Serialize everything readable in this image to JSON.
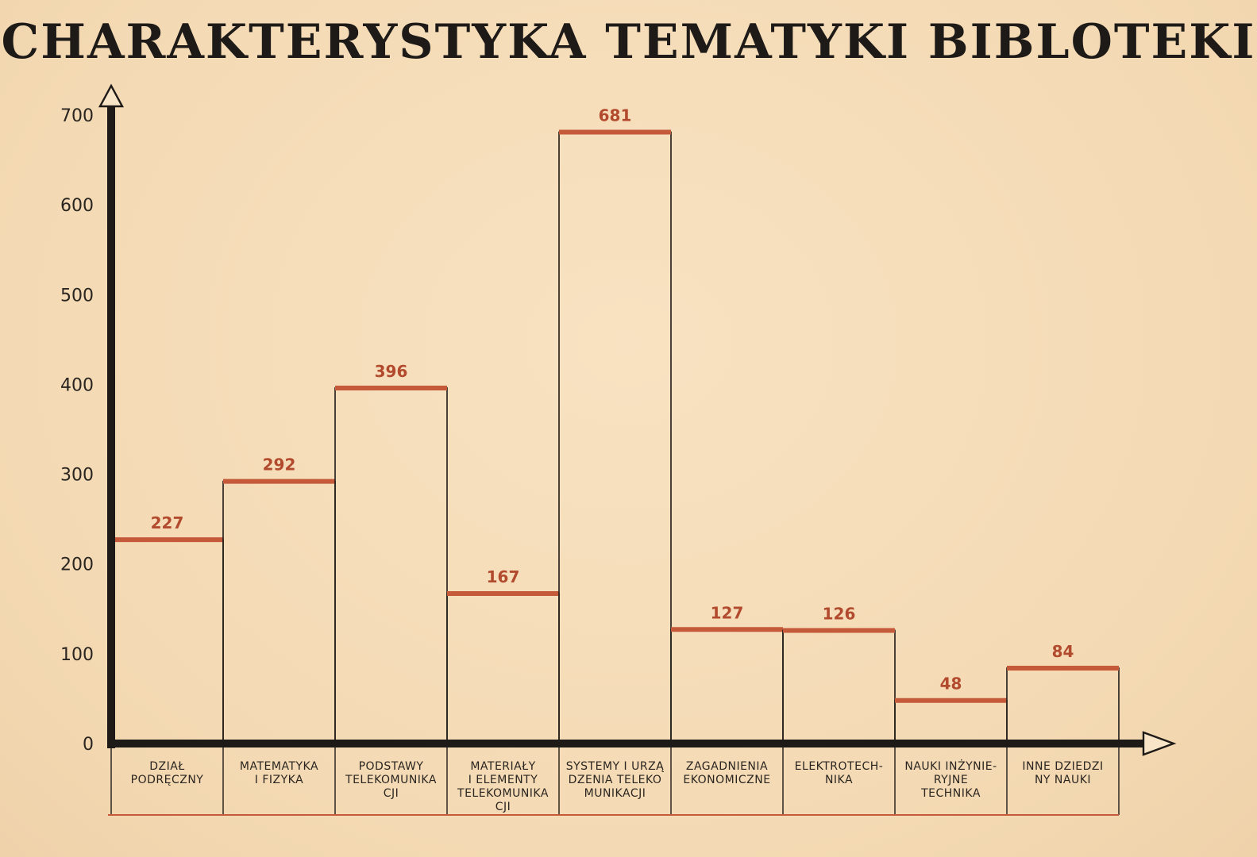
{
  "chart_data": {
    "type": "bar",
    "title": "CHARAKTERYSTYKA TEMATYKI BIBLOTEKI",
    "categories": [
      [
        "DZIAŁ",
        "PODRĘCZNY"
      ],
      [
        "MATEMATYKA",
        "I FIZYKA"
      ],
      [
        "PODSTAWY",
        "TELEKOMUNIKA",
        "CJI"
      ],
      [
        "MATERIAŁY",
        "I ELEMENTY",
        "TELEKOMUNIKA",
        "CJI"
      ],
      [
        "SYSTEMY I URZĄ",
        "DZENIA TELEKO",
        "MUNIKACJI"
      ],
      [
        "ZAGADNIENIA",
        "EKONOMICZNE"
      ],
      [
        "ELEKTROTECH-",
        "NIKA"
      ],
      [
        "NAUKI INŻYNIE-",
        "RYJNE",
        "TECHNIKA"
      ],
      [
        "INNE DZIEDZI",
        "NY NAUKI"
      ]
    ],
    "values": [
      227,
      292,
      396,
      167,
      681,
      127,
      126,
      48,
      84
    ],
    "value_labels": [
      "227",
      "292",
      "396",
      "167",
      "681",
      "127",
      "126",
      "48",
      "84"
    ],
    "y_ticks": [
      0,
      100,
      200,
      300,
      400,
      500,
      600,
      700
    ],
    "y_tick_labels": [
      "0",
      "100",
      "200",
      "300",
      "400",
      "500",
      "600",
      "700"
    ],
    "ylim": [
      0,
      700
    ],
    "grid": false,
    "legend": "none",
    "colors": {
      "axis": "#1e1a17",
      "bar_top": "#c45a3a",
      "bar_outline": "#1e1a17",
      "value_text": "#b24a2e",
      "background": "#f6ddb8"
    }
  }
}
